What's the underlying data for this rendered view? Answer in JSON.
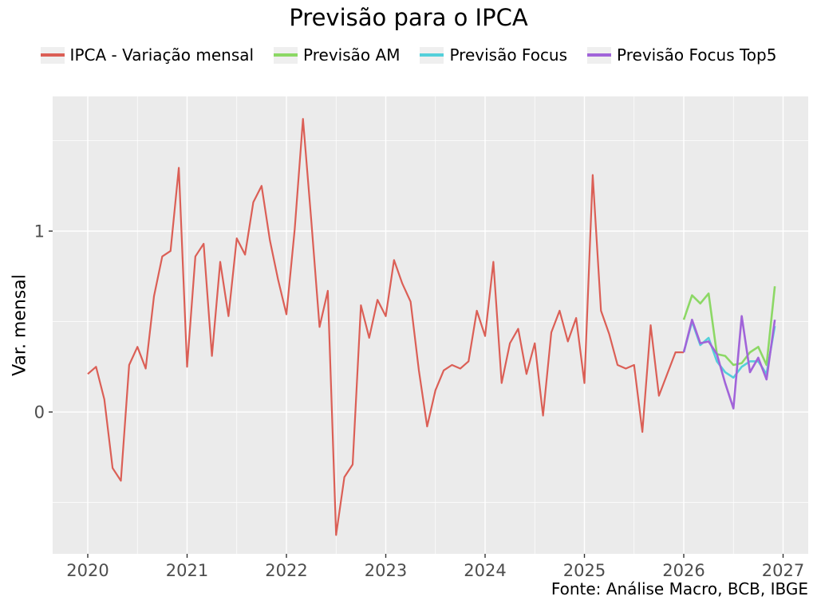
{
  "title": "Previsão para o IPCA",
  "y_axis_label": "Var. mensal",
  "caption": "Fonte: Análise Macro, BCB, IBGE",
  "colors": {
    "panel_bg": "#EBEBEB",
    "grid": "#FFFFFF",
    "axis_text": "#4D4D4D",
    "tick_mark": "#333333",
    "legend_key_bg": "#EFEFEF",
    "ipca": "#DB5F56",
    "previsao_am": "#8CD865",
    "previsao_focus": "#54D0DA",
    "previsao_focus_top5": "#A164D9"
  },
  "legend": {
    "items": [
      {
        "label": "IPCA - Variação mensal",
        "color": "#DB5F56"
      },
      {
        "label": "Previsão AM",
        "color": "#8CD865"
      },
      {
        "label": "Previsão Focus",
        "color": "#54D0DA"
      },
      {
        "label": "Previsão Focus Top5",
        "color": "#A164D9"
      }
    ]
  },
  "chart_data": {
    "type": "line",
    "title": "Previsão para o IPCA",
    "xlabel": "",
    "ylabel": "Var. mensal",
    "legend_position": "top",
    "grid": true,
    "xlim": [
      2019.6466,
      2027.253
    ],
    "ylim": [
      -0.784,
      1.7445
    ],
    "x_ticks": [
      2020,
      2021,
      2022,
      2023,
      2024,
      2025,
      2026,
      2027
    ],
    "x_tick_labels": [
      "2020",
      "2021",
      "2022",
      "2023",
      "2024",
      "2025",
      "2026",
      "2027"
    ],
    "y_ticks": [
      0,
      1
    ],
    "y_tick_labels": [
      "0",
      "1"
    ],
    "x_minor_step": 0.5,
    "y_minor_step": 0.5,
    "series": [
      {
        "name": "IPCA - Variação mensal",
        "color": "#DB5F56",
        "width": 2.2,
        "start_year": 2020,
        "start_month": 1,
        "values": [
          0.21,
          0.25,
          0.07,
          -0.31,
          -0.38,
          0.26,
          0.36,
          0.24,
          0.64,
          0.86,
          0.89,
          1.35,
          0.25,
          0.86,
          0.93,
          0.31,
          0.83,
          0.53,
          0.96,
          0.87,
          1.16,
          1.25,
          0.95,
          0.73,
          0.54,
          1.01,
          1.62,
          1.06,
          0.47,
          0.67,
          -0.68,
          -0.36,
          -0.29,
          0.59,
          0.41,
          0.62,
          0.53,
          0.84,
          0.71,
          0.61,
          0.23,
          -0.08,
          0.12,
          0.23,
          0.26,
          0.24,
          0.28,
          0.56,
          0.42,
          0.83,
          0.16,
          0.38,
          0.46,
          0.21,
          0.38,
          -0.02,
          0.44,
          0.56,
          0.39,
          0.52,
          0.16,
          1.31,
          0.56,
          0.43,
          0.26,
          0.24,
          0.26,
          -0.11,
          0.48,
          0.09,
          0.21,
          0.33,
          0.33
        ]
      },
      {
        "name": "Previsão AM",
        "color": "#8CD865",
        "width": 2.6,
        "start_year": 2026,
        "start_month": 1,
        "values": [
          0.51,
          0.645,
          0.6,
          0.655,
          0.32,
          0.31,
          0.26,
          0.27,
          0.33,
          0.36,
          0.26,
          0.695
        ]
      },
      {
        "name": "Previsão Focus",
        "color": "#54D0DA",
        "width": 2.6,
        "start_year": 2026,
        "start_month": 1,
        "values": [
          0.33,
          0.5,
          0.37,
          0.41,
          0.28,
          0.22,
          0.19,
          0.25,
          0.28,
          0.28,
          0.21,
          0.475
        ]
      },
      {
        "name": "Previsão Focus Top5",
        "color": "#A164D9",
        "width": 2.6,
        "start_year": 2026,
        "start_month": 1,
        "values": [
          0.33,
          0.51,
          0.38,
          0.39,
          0.32,
          0.16,
          0.02,
          0.53,
          0.22,
          0.3,
          0.18,
          0.51
        ]
      }
    ]
  }
}
